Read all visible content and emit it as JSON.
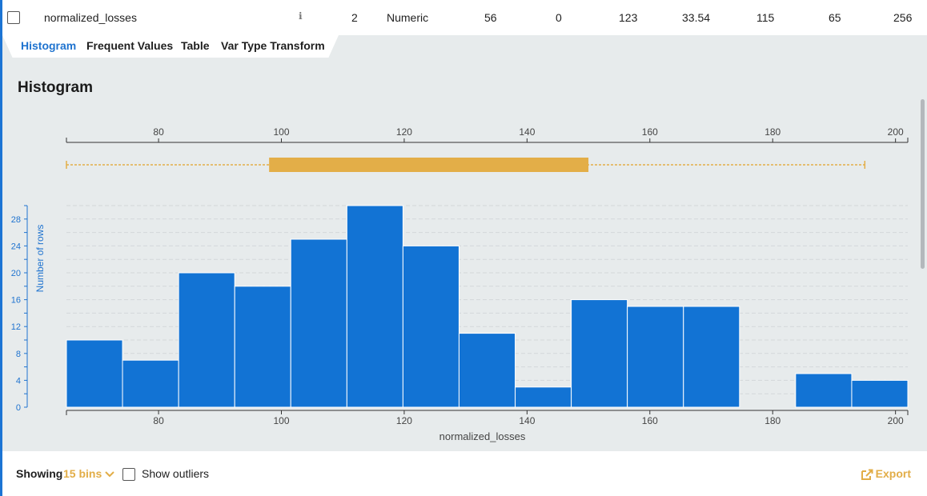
{
  "row": {
    "field_name": "normalized_losses",
    "info_glyph": "ℹ",
    "cells": [
      "2",
      "Numeric",
      "56",
      "0",
      "123",
      "33.54",
      "115",
      "65",
      "256"
    ]
  },
  "tabs": [
    {
      "label": "Histogram",
      "active": true
    },
    {
      "label": "Frequent Values",
      "active": false
    },
    {
      "label": "Table",
      "active": false
    },
    {
      "label": "Var Type Transform",
      "active": false
    }
  ],
  "section_title": "Histogram",
  "footer": {
    "showing_label": "Showing",
    "bins_label": "15 bins",
    "outliers_label": "Show outliers",
    "export_label": "Export"
  },
  "colors": {
    "bar": "#1273d4",
    "box": "#e3ae48",
    "accent": "#1f73cf"
  },
  "chart_data": {
    "type": "bar",
    "xlabel": "normalized_losses",
    "ylabel": "Number of rows",
    "xlim": [
      65,
      202
    ],
    "ylim": [
      0,
      30
    ],
    "x_ticks": [
      80,
      100,
      120,
      140,
      160,
      180,
      200
    ],
    "y_ticks": [
      0,
      4,
      8,
      12,
      16,
      20,
      24,
      28
    ],
    "bins": [
      {
        "x0": 65,
        "x1": 74.13,
        "count": 10
      },
      {
        "x0": 74.13,
        "x1": 83.27,
        "count": 7
      },
      {
        "x0": 83.27,
        "x1": 92.4,
        "count": 20
      },
      {
        "x0": 92.4,
        "x1": 101.53,
        "count": 18
      },
      {
        "x0": 101.53,
        "x1": 110.67,
        "count": 25
      },
      {
        "x0": 110.67,
        "x1": 119.8,
        "count": 30
      },
      {
        "x0": 119.8,
        "x1": 128.93,
        "count": 24
      },
      {
        "x0": 128.93,
        "x1": 138.07,
        "count": 11
      },
      {
        "x0": 138.07,
        "x1": 147.2,
        "count": 3
      },
      {
        "x0": 147.2,
        "x1": 156.33,
        "count": 16
      },
      {
        "x0": 156.33,
        "x1": 165.47,
        "count": 15
      },
      {
        "x0": 165.47,
        "x1": 174.6,
        "count": 15
      },
      {
        "x0": 174.6,
        "x1": 183.73,
        "count": 0
      },
      {
        "x0": 183.73,
        "x1": 192.87,
        "count": 5
      },
      {
        "x0": 192.87,
        "x1": 202,
        "count": 4
      }
    ],
    "boxplot": {
      "whisker_low": 65,
      "q1": 98,
      "q3": 150,
      "whisker_high": 195
    }
  }
}
